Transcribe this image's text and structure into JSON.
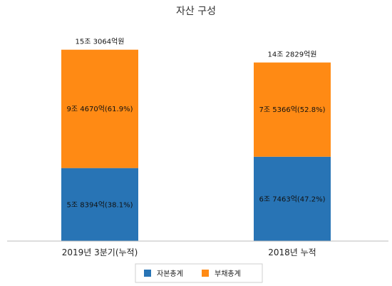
{
  "chart_data": {
    "type": "bar",
    "stacked": true,
    "title": "자산 구성",
    "categories": [
      "2019년 3분기(누적)",
      "2018년 누적"
    ],
    "totals": [
      153064,
      142829
    ],
    "total_labels": [
      "15조 3064억원",
      "14조 2829억원"
    ],
    "series": [
      {
        "name": "자본총계",
        "color": "#2874b5",
        "values": [
          58394,
          67463
        ],
        "labels": [
          "5조 8394억(38.1%)",
          "6조 7463억(47.2%)"
        ]
      },
      {
        "name": "부채총계",
        "color": "#ff8a14",
        "values": [
          94670,
          75366
        ],
        "labels": [
          "9조 4670억(61.9%)",
          "7조 5366억(52.8%)"
        ]
      }
    ],
    "ylim": [
      0,
      170000
    ],
    "grid": false,
    "legend_position": "bottom"
  }
}
